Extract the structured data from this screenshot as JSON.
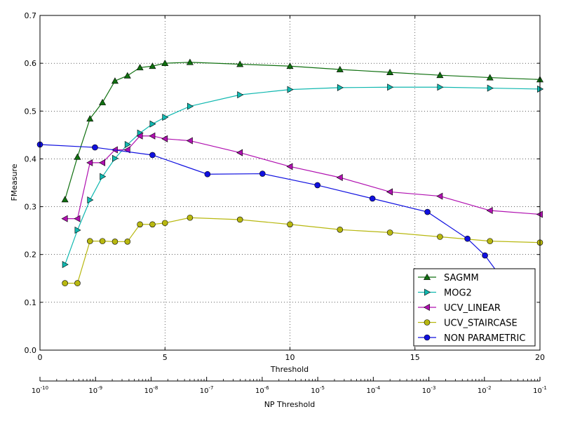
{
  "chart_data": {
    "type": "line",
    "title": "",
    "xlabel": "Threshold",
    "ylabel": "FMeasure",
    "xlim": [
      0,
      20
    ],
    "ylim": [
      0,
      0.7
    ],
    "x_ticks": [
      "0",
      "5",
      "10",
      "15",
      "20"
    ],
    "y_ticks": [
      "0.0",
      "0.1",
      "0.2",
      "0.3",
      "0.4",
      "0.5",
      "0.6",
      "0.7"
    ],
    "grid": true,
    "legend_position": "lower-right",
    "secondary_axis": {
      "label": "NP Threshold",
      "scale": "log",
      "range": [
        1e-10,
        0.1
      ],
      "ticks": [
        {
          "base": "10",
          "exp": "-10"
        },
        {
          "base": "10",
          "exp": "-9"
        },
        {
          "base": "10",
          "exp": "-8"
        },
        {
          "base": "10",
          "exp": "-7"
        },
        {
          "base": "10",
          "exp": "-6"
        },
        {
          "base": "10",
          "exp": "-5"
        },
        {
          "base": "10",
          "exp": "-4"
        },
        {
          "base": "10",
          "exp": "-3"
        },
        {
          "base": "10",
          "exp": "-2"
        },
        {
          "base": "10",
          "exp": "-1"
        }
      ]
    },
    "series": [
      {
        "name": "SAGMM",
        "color": "#107010",
        "marker": "triangle-up",
        "x": [
          1,
          1.5,
          2,
          2.5,
          3,
          3.5,
          4,
          4.5,
          5,
          6,
          8,
          10,
          12,
          14,
          16,
          18,
          20
        ],
        "y": [
          0.315,
          0.404,
          0.484,
          0.518,
          0.563,
          0.574,
          0.591,
          0.594,
          0.6,
          0.602,
          0.598,
          0.594,
          0.587,
          0.581,
          0.575,
          0.57,
          0.566
        ]
      },
      {
        "name": "MOG2",
        "color": "#10b8b0",
        "marker": "triangle-right",
        "x": [
          1,
          1.5,
          2,
          2.5,
          3,
          3.5,
          4,
          4.5,
          5,
          6,
          8,
          10,
          12,
          14,
          16,
          18,
          20
        ],
        "y": [
          0.179,
          0.251,
          0.314,
          0.363,
          0.401,
          0.43,
          0.454,
          0.473,
          0.487,
          0.51,
          0.534,
          0.545,
          0.549,
          0.55,
          0.55,
          0.548,
          0.546
        ]
      },
      {
        "name": "UCV_LINEAR",
        "color": "#b010b0",
        "marker": "triangle-left",
        "x": [
          1,
          1.5,
          2,
          2.5,
          3,
          3.5,
          4,
          4.5,
          5,
          6,
          8,
          10,
          12,
          14,
          16,
          18,
          20
        ],
        "y": [
          0.275,
          0.275,
          0.392,
          0.392,
          0.419,
          0.419,
          0.448,
          0.448,
          0.442,
          0.438,
          0.413,
          0.384,
          0.361,
          0.331,
          0.322,
          0.292,
          0.284
        ]
      },
      {
        "name": "UCV_STAIRCASE",
        "color": "#b8b810",
        "marker": "circle",
        "x": [
          1,
          1.5,
          2,
          2.5,
          3,
          3.5,
          4,
          4.5,
          5,
          6,
          8,
          10,
          12,
          14,
          16,
          18,
          20
        ],
        "y": [
          0.14,
          0.14,
          0.228,
          0.228,
          0.227,
          0.227,
          0.263,
          0.263,
          0.266,
          0.277,
          0.273,
          0.263,
          0.252,
          0.246,
          0.237,
          0.228,
          0.225
        ]
      },
      {
        "name": "NON PARAMETRIC",
        "color": "#1010e0",
        "marker": "circle",
        "x": [
          0,
          2.2,
          4.5,
          6.7,
          8.9,
          11.1,
          13.3,
          15.5,
          17.1,
          17.8,
          19.4
        ],
        "y": [
          0.43,
          0.424,
          0.408,
          0.368,
          0.369,
          0.345,
          0.317,
          0.289,
          0.233,
          0.198,
          0.085
        ]
      }
    ]
  }
}
